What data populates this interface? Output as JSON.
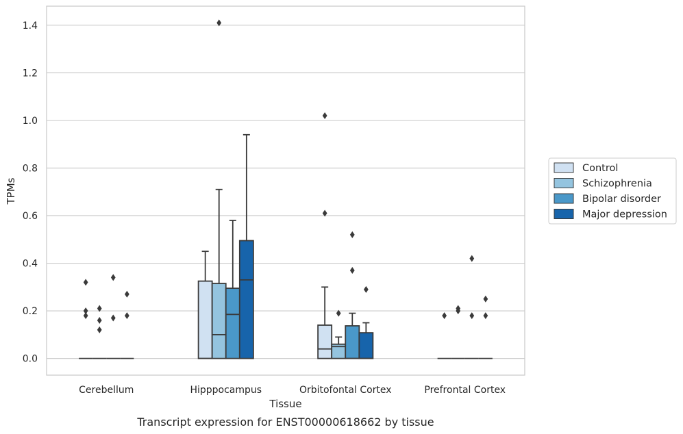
{
  "caption": "Transcript expression for ENST00000618662 by tissue",
  "chart_data": {
    "type": "boxplot",
    "title": "",
    "xlabel": "Tissue",
    "ylabel": "TPMs",
    "ylim": [
      -0.07,
      1.48
    ],
    "yticks": [
      0.0,
      0.2,
      0.4,
      0.6,
      0.8,
      1.0,
      1.2,
      1.4
    ],
    "ytick_labels": [
      "0.0",
      "0.2",
      "0.4",
      "0.6",
      "0.8",
      "1.0",
      "1.2",
      "1.4"
    ],
    "grid": "horizontal",
    "legend_position": "outside-right",
    "categories": [
      "Cerebellum",
      "Hipppocampus",
      "Orbitofontal Cortex",
      "Prefrontal Cortex"
    ],
    "series": [
      {
        "name": "Control",
        "color": "#d0e1f2",
        "boxes": [
          {
            "q1": 0,
            "median": 0,
            "q3": 0,
            "whisker_low": 0,
            "whisker_high": 0,
            "outliers": [
              0.2,
              0.18,
              0.32
            ]
          },
          {
            "q1": 0,
            "median": 0.0,
            "q3": 0.325,
            "whisker_low": 0,
            "whisker_high": 0.45,
            "outliers": []
          },
          {
            "q1": 0,
            "median": 0.04,
            "q3": 0.14,
            "whisker_low": 0,
            "whisker_high": 0.3,
            "outliers": [
              0.61,
              1.02
            ]
          },
          {
            "q1": 0,
            "median": 0,
            "q3": 0,
            "whisker_low": 0,
            "whisker_high": 0,
            "outliers": [
              0.18
            ]
          }
        ]
      },
      {
        "name": "Schizophrenia",
        "color": "#94c4df",
        "boxes": [
          {
            "q1": 0,
            "median": 0,
            "q3": 0,
            "whisker_low": 0,
            "whisker_high": 0,
            "outliers": [
              0.21,
              0.16,
              0.12
            ]
          },
          {
            "q1": 0,
            "median": 0.1,
            "q3": 0.315,
            "whisker_low": 0,
            "whisker_high": 0.71,
            "outliers": [
              1.41
            ]
          },
          {
            "q1": 0,
            "median": 0.05,
            "q3": 0.06,
            "whisker_low": 0,
            "whisker_high": 0.09,
            "outliers": [
              0.19
            ]
          },
          {
            "q1": 0,
            "median": 0,
            "q3": 0,
            "whisker_low": 0,
            "whisker_high": 0,
            "outliers": [
              0.21,
              0.2
            ]
          }
        ]
      },
      {
        "name": "Bipolar disorder",
        "color": "#4a98c9",
        "boxes": [
          {
            "q1": 0,
            "median": 0,
            "q3": 0,
            "whisker_low": 0,
            "whisker_high": 0,
            "outliers": [
              0.34,
              0.17
            ]
          },
          {
            "q1": 0,
            "median": 0.185,
            "q3": 0.295,
            "whisker_low": 0,
            "whisker_high": 0.58,
            "outliers": []
          },
          {
            "q1": 0,
            "median": 0.0,
            "q3": 0.137,
            "whisker_low": 0,
            "whisker_high": 0.19,
            "outliers": [
              0.37,
              0.52
            ]
          },
          {
            "q1": 0,
            "median": 0,
            "q3": 0,
            "whisker_low": 0,
            "whisker_high": 0,
            "outliers": [
              0.18,
              0.42
            ]
          }
        ]
      },
      {
        "name": "Major depression",
        "color": "#1764ab",
        "boxes": [
          {
            "q1": 0,
            "median": 0,
            "q3": 0,
            "whisker_low": 0,
            "whisker_high": 0,
            "outliers": [
              0.27,
              0.18
            ]
          },
          {
            "q1": 0,
            "median": 0.33,
            "q3": 0.495,
            "whisker_low": 0,
            "whisker_high": 0.94,
            "outliers": []
          },
          {
            "q1": 0,
            "median": 0.0,
            "q3": 0.108,
            "whisker_low": 0,
            "whisker_high": 0.15,
            "outliers": [
              0.29
            ]
          },
          {
            "q1": 0,
            "median": 0,
            "q3": 0,
            "whisker_low": 0,
            "whisker_high": 0,
            "outliers": [
              0.25,
              0.18
            ]
          }
        ]
      }
    ]
  }
}
